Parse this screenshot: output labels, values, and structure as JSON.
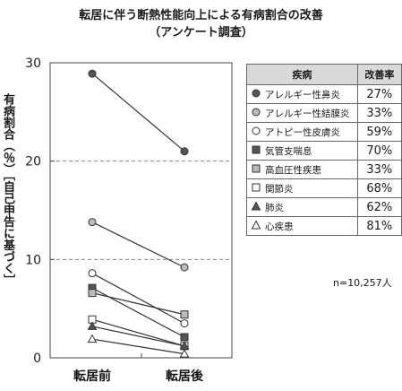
{
  "chart_data": {
    "type": "line",
    "title": "転居に伴う断熱性能向上による有病割合の改善",
    "subtitle": "（アンケート調査）",
    "ylabel": "有病割合（％）［自己申告に基づく］",
    "categories": [
      "転居前",
      "転居後"
    ],
    "ylim": [
      0,
      30
    ],
    "yticks": [
      0,
      10,
      20,
      30
    ],
    "gridlines": [
      10,
      20
    ],
    "legend": {
      "header_name": "疾病",
      "header_rate": "改善率",
      "placement": "right"
    },
    "series": [
      {
        "name": "アレルギー性鼻炎",
        "values": [
          28.9,
          21.0
        ],
        "rate": "27%",
        "marker": "circle",
        "fill": "#555555"
      },
      {
        "name": "アレルギー性結膜炎",
        "values": [
          13.8,
          9.2
        ],
        "rate": "33%",
        "marker": "circle",
        "fill": "#bbbbbb"
      },
      {
        "name": "アトピー性皮膚炎",
        "values": [
          8.6,
          3.5
        ],
        "rate": "59%",
        "marker": "circle",
        "fill": "#ffffff"
      },
      {
        "name": "気管支喘息",
        "values": [
          7.1,
          2.1
        ],
        "rate": "70%",
        "marker": "square",
        "fill": "#555555"
      },
      {
        "name": "高血圧性疾患",
        "values": [
          6.6,
          4.4
        ],
        "rate": "33%",
        "marker": "square",
        "fill": "#bbbbbb"
      },
      {
        "name": "関節炎",
        "values": [
          3.9,
          1.2
        ],
        "rate": "68%",
        "marker": "square",
        "fill": "#ffffff"
      },
      {
        "name": "肺炎",
        "values": [
          3.2,
          1.2
        ],
        "rate": "62%",
        "marker": "triangle",
        "fill": "#555555"
      },
      {
        "name": "心疾患",
        "values": [
          1.9,
          0.4
        ],
        "rate": "81%",
        "marker": "triangle",
        "fill": "#ffffff"
      }
    ],
    "note": "n=10,257人"
  }
}
